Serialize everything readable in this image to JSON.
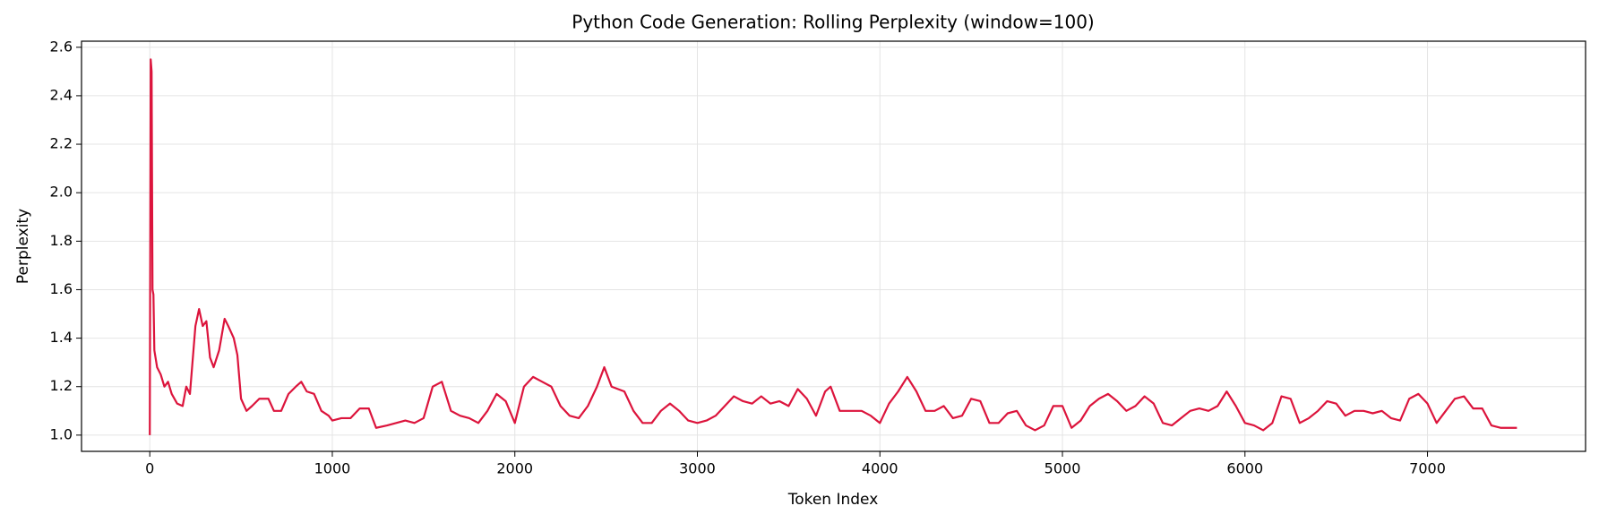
{
  "chart_data": {
    "type": "line",
    "title": "Python Code Generation: Rolling Perplexity (window=100)",
    "x_label": "Token Index",
    "y_label": "Perplexity",
    "color": "#dc143c",
    "grid": true,
    "xlim": [
      -374,
      7866
    ],
    "ylim": [
      0.933,
      2.625
    ],
    "xticks": [
      0,
      1000,
      2000,
      3000,
      4000,
      5000,
      6000,
      7000
    ],
    "yticks": [
      {
        "value": 1.0,
        "label": "1.0"
      },
      1.2,
      1.4,
      1.6,
      1.8,
      {
        "value": 2.0,
        "label": "2.0"
      },
      2.2,
      2.4,
      2.6
    ],
    "x": [
      0,
      5,
      10,
      15,
      20,
      25,
      40,
      60,
      80,
      100,
      120,
      150,
      180,
      200,
      220,
      250,
      270,
      290,
      310,
      330,
      350,
      380,
      410,
      430,
      460,
      480,
      500,
      530,
      560,
      600,
      650,
      680,
      720,
      760,
      800,
      830,
      860,
      900,
      940,
      980,
      1000,
      1050,
      1100,
      1150,
      1200,
      1240,
      1300,
      1350,
      1400,
      1450,
      1500,
      1550,
      1600,
      1650,
      1700,
      1750,
      1800,
      1850,
      1900,
      1950,
      2000,
      2050,
      2100,
      2150,
      2200,
      2250,
      2300,
      2350,
      2400,
      2450,
      2490,
      2530,
      2600,
      2650,
      2700,
      2750,
      2800,
      2850,
      2900,
      2950,
      3000,
      3050,
      3100,
      3150,
      3200,
      3250,
      3300,
      3350,
      3400,
      3450,
      3500,
      3550,
      3600,
      3650,
      3700,
      3730,
      3780,
      3850,
      3900,
      3950,
      4000,
      4050,
      4100,
      4150,
      4200,
      4250,
      4300,
      4350,
      4400,
      4450,
      4500,
      4550,
      4600,
      4650,
      4700,
      4750,
      4800,
      4850,
      4900,
      4950,
      5000,
      5050,
      5100,
      5150,
      5200,
      5250,
      5300,
      5350,
      5400,
      5450,
      5500,
      5550,
      5600,
      5650,
      5700,
      5750,
      5800,
      5850,
      5900,
      5950,
      6000,
      6050,
      6100,
      6150,
      6200,
      6250,
      6300,
      6350,
      6400,
      6450,
      6500,
      6550,
      6600,
      6650,
      6700,
      6750,
      6800,
      6850,
      6900,
      6950,
      7000,
      7050,
      7100,
      7150,
      7200,
      7250,
      7300,
      7350,
      7400,
      7450,
      7490
    ],
    "values": [
      1.0,
      2.55,
      2.5,
      1.6,
      1.58,
      1.35,
      1.28,
      1.25,
      1.2,
      1.22,
      1.17,
      1.13,
      1.12,
      1.2,
      1.17,
      1.45,
      1.52,
      1.45,
      1.47,
      1.32,
      1.28,
      1.35,
      1.48,
      1.45,
      1.4,
      1.33,
      1.15,
      1.1,
      1.12,
      1.15,
      1.15,
      1.1,
      1.1,
      1.17,
      1.2,
      1.22,
      1.18,
      1.17,
      1.1,
      1.08,
      1.06,
      1.07,
      1.07,
      1.11,
      1.11,
      1.03,
      1.04,
      1.05,
      1.06,
      1.05,
      1.07,
      1.2,
      1.22,
      1.1,
      1.08,
      1.07,
      1.05,
      1.1,
      1.17,
      1.14,
      1.05,
      1.2,
      1.24,
      1.22,
      1.2,
      1.12,
      1.08,
      1.07,
      1.12,
      1.2,
      1.28,
      1.2,
      1.18,
      1.1,
      1.05,
      1.05,
      1.1,
      1.13,
      1.1,
      1.06,
      1.05,
      1.06,
      1.08,
      1.12,
      1.16,
      1.14,
      1.13,
      1.16,
      1.13,
      1.14,
      1.12,
      1.19,
      1.15,
      1.08,
      1.18,
      1.2,
      1.1,
      1.1,
      1.1,
      1.08,
      1.05,
      1.13,
      1.18,
      1.24,
      1.18,
      1.1,
      1.1,
      1.12,
      1.07,
      1.08,
      1.15,
      1.14,
      1.05,
      1.05,
      1.09,
      1.1,
      1.04,
      1.02,
      1.04,
      1.12,
      1.12,
      1.03,
      1.06,
      1.12,
      1.15,
      1.17,
      1.14,
      1.1,
      1.12,
      1.16,
      1.13,
      1.05,
      1.04,
      1.07,
      1.1,
      1.11,
      1.1,
      1.12,
      1.18,
      1.12,
      1.05,
      1.04,
      1.02,
      1.05,
      1.16,
      1.15,
      1.05,
      1.07,
      1.1,
      1.14,
      1.13,
      1.08,
      1.1,
      1.1,
      1.09,
      1.1,
      1.07,
      1.06,
      1.15,
      1.17,
      1.13,
      1.05,
      1.1,
      1.15,
      1.16,
      1.11,
      1.11,
      1.04,
      1.03,
      1.03,
      1.03
    ]
  }
}
